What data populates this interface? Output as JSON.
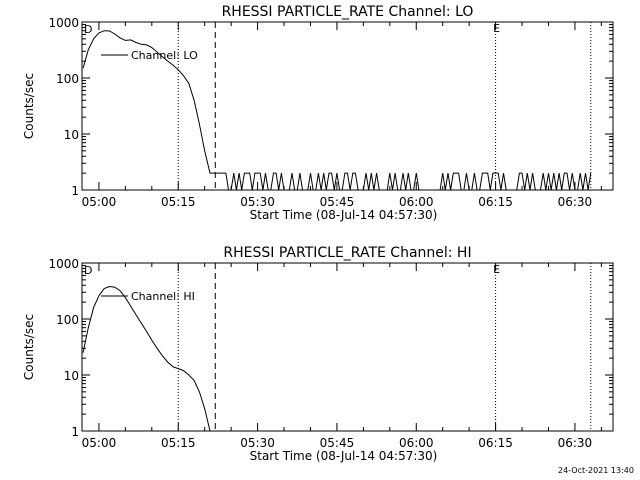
{
  "footer": {
    "timestamp": "24-Oct-2021 13:40"
  },
  "chart_data": [
    {
      "type": "line",
      "title": "RHESSI PARTICLE_RATE Channel: LO",
      "xlabel": "Start Time (08-Jul-14 04:57:30)",
      "ylabel": "Counts/sec",
      "yscale": "log",
      "ylim": [
        1,
        1000
      ],
      "xlim_minutes": [
        -0.7,
        99.7
      ],
      "x_tick_labels": [
        "05:00",
        "05:15",
        "05:30",
        "05:45",
        "06:00",
        "06:15",
        "06:30"
      ],
      "y_tick_labels": [
        "1",
        "10",
        "100",
        "1000"
      ],
      "markers": [
        {
          "time": "05:15",
          "style": "dotted"
        },
        {
          "time": "05:22",
          "style": "dashed"
        },
        {
          "time": "06:15",
          "style": "dotted",
          "label": "E"
        },
        {
          "time": "06:33",
          "style": "dotted"
        }
      ],
      "corner_label": "D",
      "legend": {
        "label": "Channel: LO",
        "placement": "top-left"
      },
      "series": [
        {
          "name": "Channel: LO",
          "x": [
            "04:57",
            "04:58",
            "04:59",
            "05:00",
            "05:01",
            "05:02",
            "05:03",
            "05:04",
            "05:05",
            "05:06",
            "05:07",
            "05:08",
            "05:09",
            "05:10",
            "05:11",
            "05:12",
            "05:13",
            "05:14",
            "05:15",
            "05:16",
            "05:17",
            "05:18",
            "05:19",
            "05:20",
            "05:21",
            "05:22",
            "05:23",
            "05:24"
          ],
          "y": [
            150,
            320,
            500,
            640,
            700,
            690,
            610,
            520,
            470,
            480,
            430,
            400,
            390,
            350,
            290,
            240,
            200,
            170,
            140,
            110,
            80,
            40,
            15,
            5,
            2,
            2,
            2,
            2
          ]
        }
      ],
      "noise_floor": {
        "from": "05:24",
        "to": "06:33",
        "low": 1,
        "high": 2
      }
    },
    {
      "type": "line",
      "title": "RHESSI PARTICLE_RATE Channel: HI",
      "xlabel": "Start Time (08-Jul-14 04:57:30)",
      "ylabel": "Counts/sec",
      "yscale": "log",
      "ylim": [
        1,
        1000
      ],
      "xlim_minutes": [
        -0.7,
        99.7
      ],
      "x_tick_labels": [
        "05:00",
        "05:15",
        "05:30",
        "05:45",
        "06:00",
        "06:15",
        "06:30"
      ],
      "y_tick_labels": [
        "1",
        "10",
        "100",
        "1000"
      ],
      "markers": [
        {
          "time": "05:15",
          "style": "dotted"
        },
        {
          "time": "05:22",
          "style": "dashed"
        },
        {
          "time": "06:15",
          "style": "dotted",
          "label": "E"
        },
        {
          "time": "06:33",
          "style": "dotted"
        }
      ],
      "corner_label": "D",
      "legend": {
        "label": "Channel: HI",
        "placement": "top-left"
      },
      "series": [
        {
          "name": "Channel: HI",
          "x": [
            "04:57",
            "04:58",
            "04:59",
            "05:00",
            "05:01",
            "05:02",
            "05:03",
            "05:04",
            "05:05",
            "05:06",
            "05:07",
            "05:08",
            "05:09",
            "05:10",
            "05:11",
            "05:12",
            "05:13",
            "05:14",
            "05:15",
            "05:16",
            "05:17",
            "05:18",
            "05:19",
            "05:20",
            "05:21"
          ],
          "y": [
            25,
            70,
            160,
            260,
            350,
            380,
            370,
            320,
            240,
            170,
            120,
            85,
            60,
            42,
            30,
            22,
            17,
            14,
            13,
            12,
            10,
            8,
            5,
            2.5,
            1
          ]
        }
      ]
    }
  ]
}
